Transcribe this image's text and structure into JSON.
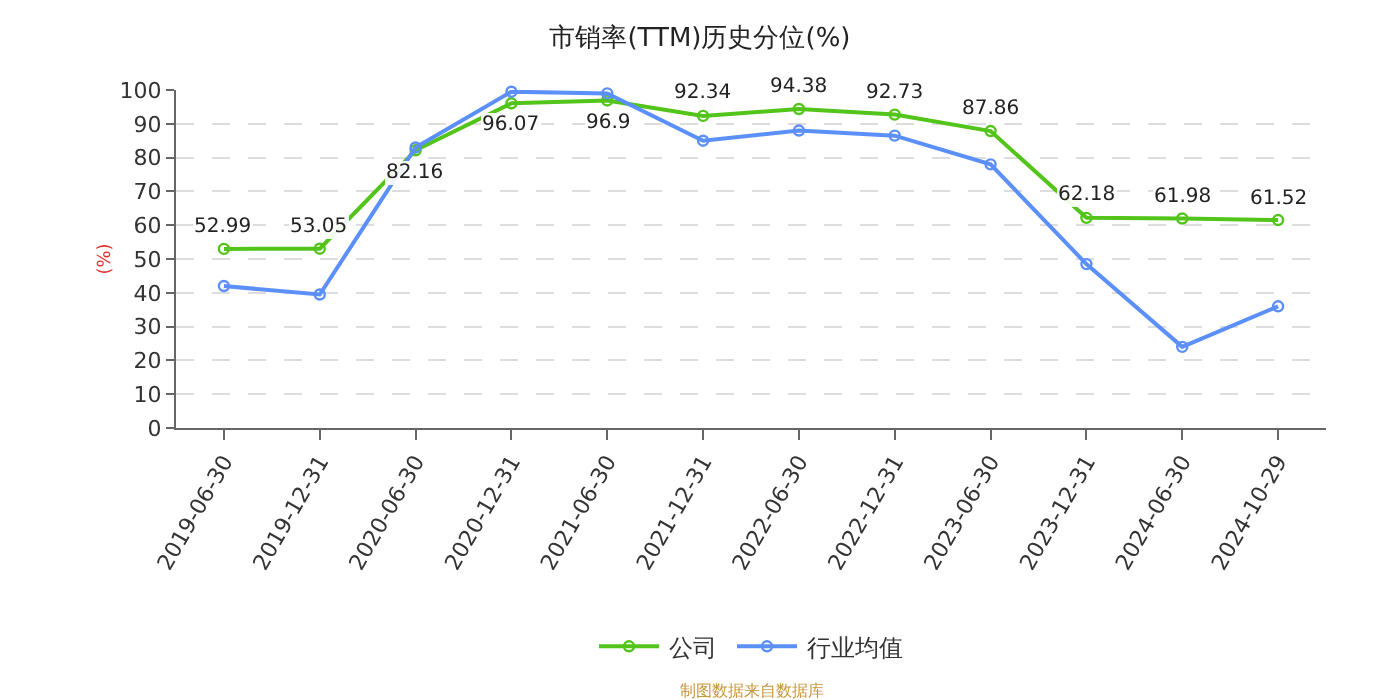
{
  "chart_data": {
    "type": "line",
    "title": "市销率(TTM)历史分位(%)",
    "ylabel": "(%)",
    "categories": [
      "2019-06-30",
      "2019-12-31",
      "2020-06-30",
      "2020-12-31",
      "2021-06-30",
      "2021-12-31",
      "2022-06-30",
      "2022-12-31",
      "2023-06-30",
      "2023-12-31",
      "2024-06-30",
      "2024-10-29"
    ],
    "series": [
      {
        "name": "公司",
        "color": "#52c41a",
        "values": [
          52.99,
          53.05,
          82.16,
          96.07,
          96.9,
          92.34,
          94.38,
          92.73,
          87.86,
          62.18,
          61.98,
          61.52
        ],
        "value_labels": [
          "52.99",
          "53.05",
          "82.16",
          "96.07",
          "96.9",
          "92.34",
          "94.38",
          "92.73",
          "87.86",
          "62.18",
          "61.98",
          "61.52"
        ]
      },
      {
        "name": "行业均值",
        "color": "#5b8ff9",
        "values": [
          42,
          39.5,
          83,
          99.5,
          99,
          85,
          88,
          86.5,
          78,
          48.5,
          24,
          36
        ]
      }
    ],
    "ylim": [
      0,
      100
    ],
    "yticks": [
      0,
      10,
      20,
      30,
      40,
      50,
      60,
      70,
      80,
      90,
      100
    ],
    "grid": "y",
    "legend": "bottom",
    "marker": "circle",
    "line_style": "solid",
    "annotations": [
      "制图数据来自数据库"
    ]
  }
}
